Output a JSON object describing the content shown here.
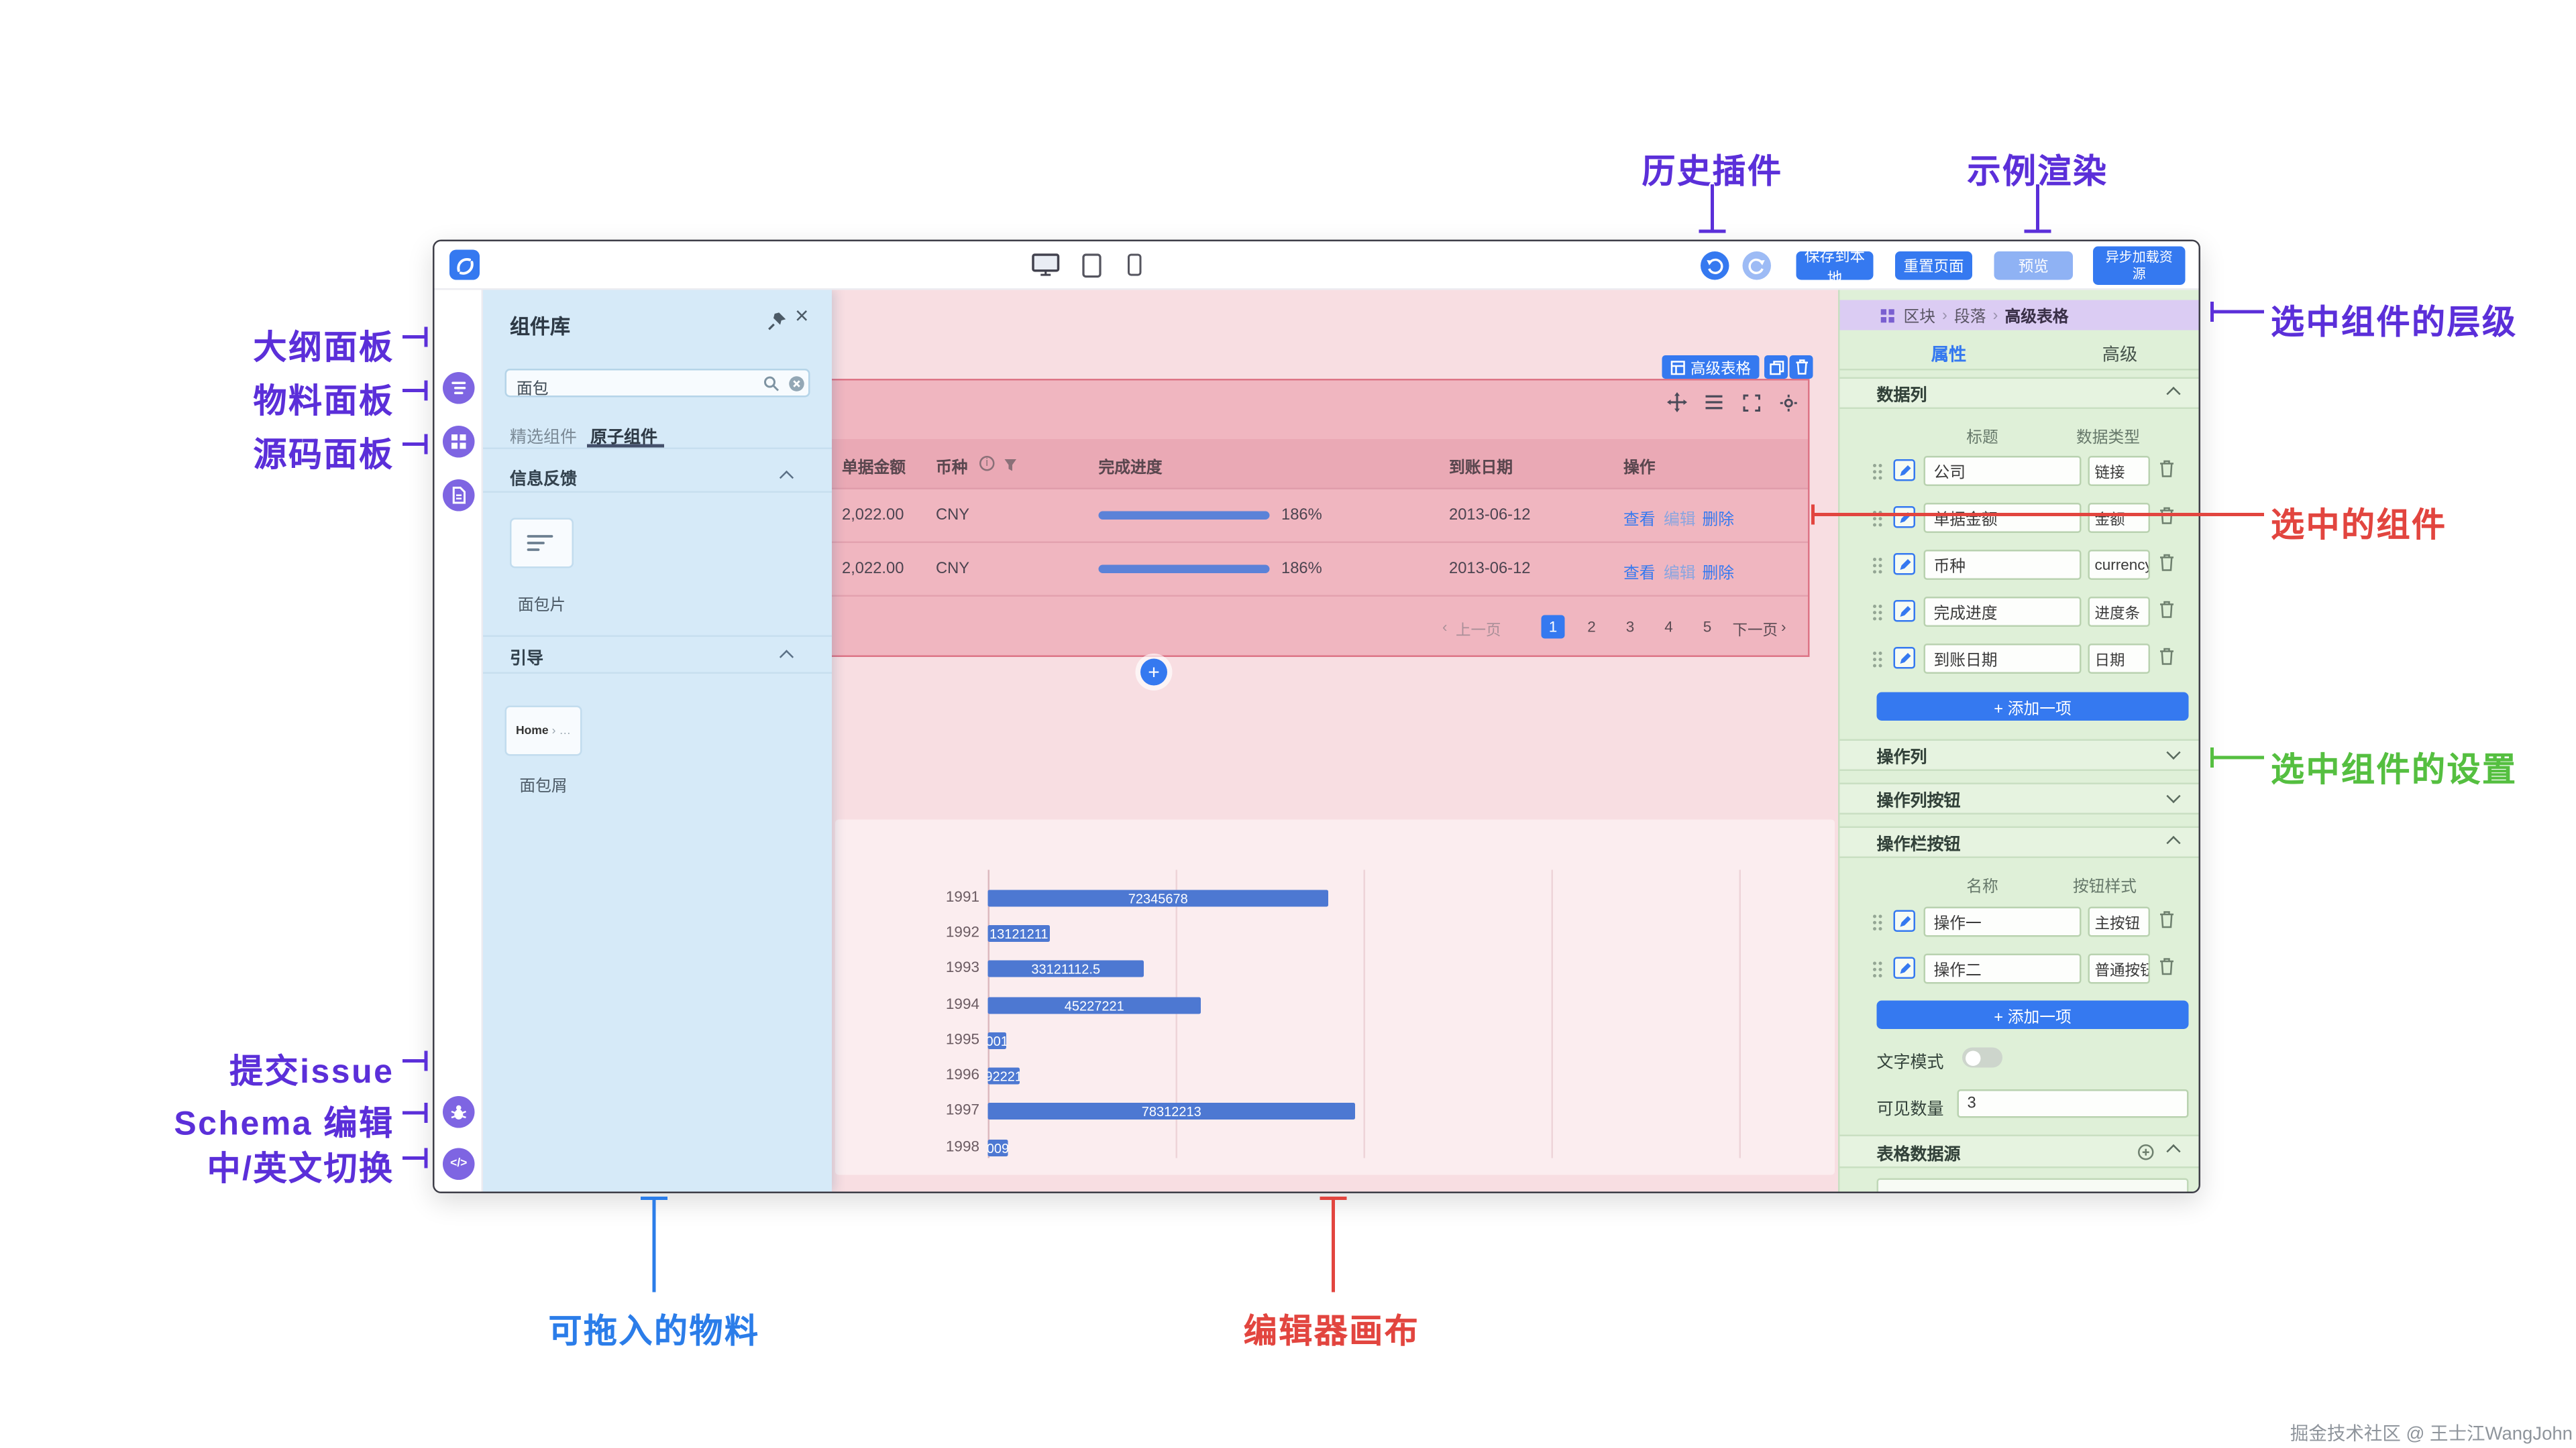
{
  "ui_colors": {
    "primary": "#3579f0",
    "annotation_purple": "#5b2fd9",
    "annotation_red": "#e2453f",
    "annotation_green": "#55bf40",
    "annotation_blue": "#2b7de9",
    "left_panel_tint": "#d6eaf8",
    "canvas_tint": "#f8dee2",
    "selected_region_tint": "#f0b6c0",
    "right_panel_tint": "#dff0d8",
    "breadcrumb_bar_tint": "#dbccf3"
  },
  "icons": {
    "close": "×",
    "schema": "</>",
    "language": "中",
    "info": "i",
    "prev_arrow": "‹",
    "next_arrow": "›",
    "separator": "›",
    "ellipsis": "…",
    "plus": "+"
  },
  "annotations": {
    "history_plugin": "历史插件",
    "sample_render": "示例渲染",
    "selected_hierarchy": "选中组件的层级",
    "selected_component": "选中的组件",
    "selected_settings": "选中组件的设置",
    "outline_panel": "大纲面板",
    "material_panel": "物料面板",
    "source_panel": "源码面板",
    "submit_issue": "提交issue",
    "schema_edit": "Schema 编辑",
    "lang_switch": "中/英文切换",
    "draggable_materials": "可拖入的物料",
    "editor_canvas": "编辑器画布",
    "watermark": "掘金技术社区 @ 王士江WangJohn"
  },
  "topbar": {
    "save_label": "保存到本地",
    "reset_label": "重置页面",
    "preview_label": "预览",
    "async_label": "异步加载资源"
  },
  "left_panel": {
    "title": "组件库",
    "search_value": "面包",
    "tab_featured": "精选组件",
    "tab_atomic": "原子组件",
    "section1_title": "信息反馈",
    "item1_label": "面包片",
    "section2_title": "引导",
    "item2_label": "面包屑",
    "item2_preview": "Home"
  },
  "canvas": {
    "chip_label": "高级表格",
    "table": {
      "col_amount": "单据金额",
      "col_currency": "币种",
      "col_progress": "完成进度",
      "col_date": "到账日期",
      "col_actions": "操作",
      "rows": [
        {
          "amount": "2,022.00",
          "currency": "CNY",
          "progress_pct": 186,
          "progress_label": "186%",
          "date": "2013-06-12"
        },
        {
          "amount": "2,022.00",
          "currency": "CNY",
          "progress_pct": 186,
          "progress_label": "186%",
          "date": "2013-06-12"
        }
      ],
      "action_view": "查看",
      "action_edit": "编辑",
      "action_delete": "删除",
      "pagination": {
        "prev": "上一页",
        "pages": [
          "1",
          "2",
          "3",
          "4",
          "5"
        ],
        "next": "下一页",
        "current_page": "1"
      }
    }
  },
  "chart_data": {
    "type": "bar",
    "orientation": "horizontal",
    "title": "",
    "xlabel": "",
    "ylabel": "",
    "categories": [
      "1991",
      "1992",
      "1993",
      "1994",
      "1995",
      "1996",
      "1997",
      "1998"
    ],
    "values": [
      72345678,
      13121211,
      33121112.5,
      45227221,
      4100122,
      6922213,
      78312213,
      4200923
    ],
    "xlim": [
      0,
      160000000
    ],
    "grid": true,
    "bar_color": "#4d78d2",
    "value_labels_inside_bars": true,
    "legend": "none"
  },
  "right_panel": {
    "breadcrumb": {
      "item1": "区块",
      "item2": "段落",
      "item3": "高级表格"
    },
    "tab_props": "属性",
    "tab_advanced": "高级",
    "data_columns": {
      "title": "数据列",
      "header_title": "标题",
      "header_type": "数据类型",
      "rows": [
        {
          "title": "公司",
          "type": "链接"
        },
        {
          "title": "单据金额",
          "type": "金额"
        },
        {
          "title": "币种",
          "type": "currency"
        },
        {
          "title": "完成进度",
          "type": "进度条"
        },
        {
          "title": "到账日期",
          "type": "日期"
        }
      ],
      "add_label": "+ 添加一项"
    },
    "section_op_col": "操作列",
    "section_op_col_btn": "操作列按钮",
    "section_op_bar_btn": "操作栏按钮",
    "op_buttons": {
      "header_name": "名称",
      "header_style": "按钮样式",
      "rows": [
        {
          "name": "操作一",
          "style": "主按钮"
        },
        {
          "name": "操作二",
          "style": "普通按钮"
        }
      ],
      "add_label": "+ 添加一项"
    },
    "text_mode_label": "文字模式",
    "text_mode_on": false,
    "visible_count_label": "可见数量",
    "visible_count_value": "3",
    "datasource_title": "表格数据源"
  }
}
